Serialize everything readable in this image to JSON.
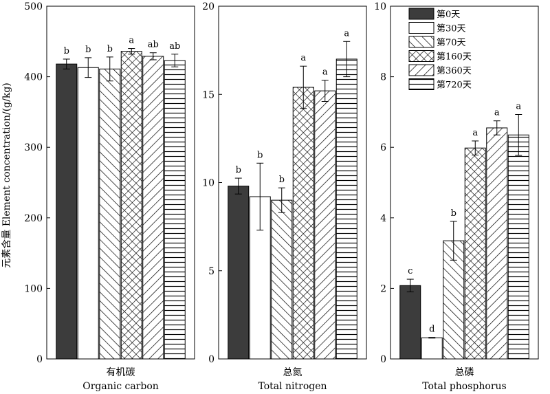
{
  "chart_data": {
    "type": "bar",
    "ylabel": "元素含量 Element concentration/(g/kg)",
    "legend": {
      "placement": "top-right",
      "entries": [
        "第0天",
        "第30天",
        "第70天",
        "第160天",
        "第360天",
        "第720天"
      ]
    },
    "series_patterns": [
      "solid-dark",
      "white",
      "diagonal-up",
      "crosshatch",
      "diagonal-down",
      "horizontal"
    ],
    "panels": [
      {
        "id": "organic-carbon",
        "label_cn": "有机碳",
        "label_en": "Organic carbon",
        "ylim": [
          0,
          500
        ],
        "yticks": [
          0,
          100,
          200,
          300,
          400,
          500
        ],
        "values": [
          418,
          413,
          411,
          436,
          429,
          423
        ],
        "errors": [
          7,
          14,
          17,
          4,
          5,
          9
        ],
        "letters": [
          "b",
          "b",
          "b",
          "a",
          "ab",
          "ab"
        ]
      },
      {
        "id": "total-nitrogen",
        "label_cn": "总氮",
        "label_en": "Total nitrogen",
        "ylim": [
          0,
          20
        ],
        "yticks": [
          0,
          5,
          10,
          15,
          20
        ],
        "values": [
          9.8,
          9.2,
          9.0,
          15.4,
          15.2,
          17.0
        ],
        "errors": [
          0.45,
          1.9,
          0.7,
          1.2,
          0.6,
          1.0
        ],
        "letters": [
          "b",
          "b",
          "b",
          "a",
          "a",
          "a"
        ]
      },
      {
        "id": "total-phosphorus",
        "label_cn": "总磷",
        "label_en": "Total phosphorus",
        "ylim": [
          0,
          10
        ],
        "yticks": [
          0,
          2,
          4,
          6,
          8,
          10
        ],
        "values": [
          2.08,
          0.6,
          3.35,
          5.98,
          6.55,
          6.35
        ],
        "errors": [
          0.18,
          0.01,
          0.55,
          0.2,
          0.2,
          0.58
        ],
        "letters": [
          "c",
          "d",
          "b",
          "a",
          "a",
          "a"
        ]
      }
    ]
  }
}
